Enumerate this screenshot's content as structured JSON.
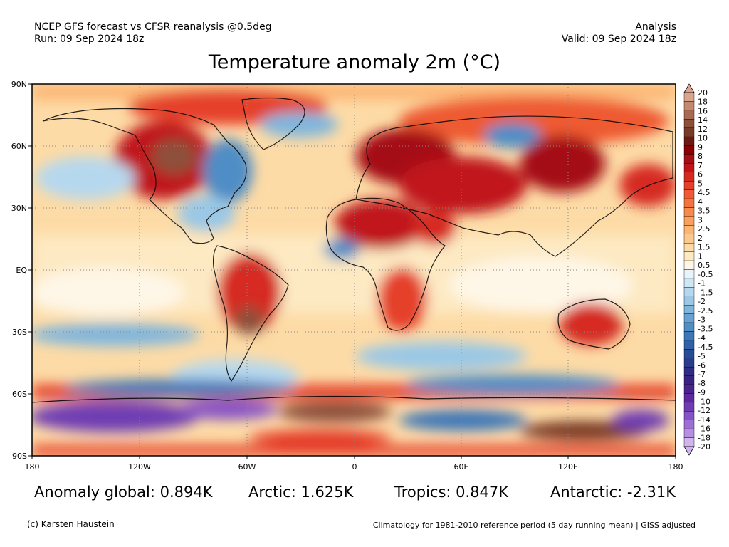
{
  "header": {
    "left_line1": "NCEP GFS forecast vs CFSR reanalysis @0.5deg",
    "left_line2": "Run: 09 Sep 2024 18z",
    "right_line1": "Analysis",
    "right_line2": "Valid: 09 Sep 2024 18z"
  },
  "title": "Temperature anomaly 2m (°C)",
  "axes": {
    "lat_labels": [
      "90N",
      "60N",
      "30N",
      "EQ",
      "30S",
      "60S",
      "90S"
    ],
    "lon_labels": [
      "180",
      "120W",
      "60W",
      "0",
      "60E",
      "120E",
      "180"
    ]
  },
  "colorbar": {
    "labels": [
      "20",
      "18",
      "16",
      "14",
      "12",
      "10",
      "9",
      "8",
      "7",
      "6",
      "5",
      "4.5",
      "4",
      "3.5",
      "3",
      "2.5",
      "2",
      "1.5",
      "1",
      "0.5",
      "-0.5",
      "-1",
      "-1.5",
      "-2",
      "-2.5",
      "-3",
      "-3.5",
      "-4",
      "-4.5",
      "-5",
      "-6",
      "-7",
      "-8",
      "-9",
      "-10",
      "-12",
      "-14",
      "-16",
      "-18",
      "-20"
    ],
    "colors": [
      "#d9a58f",
      "#c48a6f",
      "#a96a52",
      "#8e4f3a",
      "#7a3a28",
      "#6a1a12",
      "#8b0000",
      "#a50f15",
      "#c0141b",
      "#d62a20",
      "#e5402a",
      "#ee5a33",
      "#f4733d",
      "#f8894a",
      "#fba05c",
      "#fcb573",
      "#fdc88b",
      "#fddba6",
      "#fde9c2",
      "#fef6e6",
      "#e8f3fb",
      "#cfe6f5",
      "#b6d8ee",
      "#9ac8e6",
      "#80b6dd",
      "#66a2d2",
      "#4f8dc6",
      "#3d77b8",
      "#3061a8",
      "#264c98",
      "#2a3c8c",
      "#2f2c86",
      "#3a2284",
      "#4b228f",
      "#5c2a9e",
      "#6f3cb3",
      "#8553c7",
      "#9c6ed6",
      "#b68fe2",
      "#cfb4ee"
    ]
  },
  "stats": {
    "global": "Anomaly global: 0.894K",
    "arctic": "Arctic: 1.625K",
    "tropics": "Tropics: 0.847K",
    "antarctic": "Antarctic: -2.31K"
  },
  "footer": {
    "credit": "(c) Karsten Haustein",
    "climatology": "Climatology for 1981-2010 reference period (5 day running mean) | GISS adjusted"
  }
}
